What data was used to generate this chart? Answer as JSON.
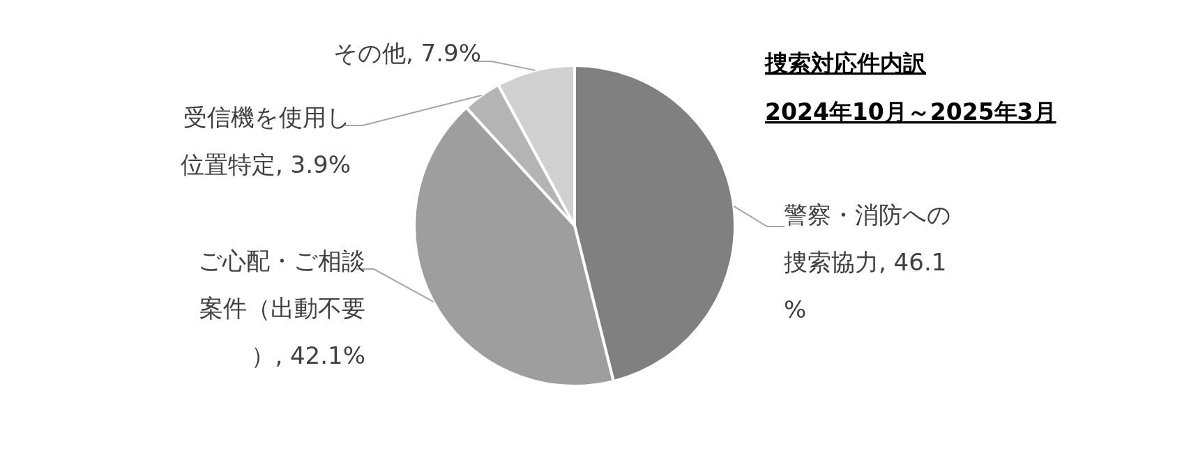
{
  "chart_data": {
    "type": "pie",
    "title": "捜索対応件内訳",
    "subtitle": "2024年10月～2025年3月",
    "categories": [
      "警察・消防への捜索協力",
      "ご心配・ご相談案件（出動不要）",
      "受信機を使用し位置特定",
      "その他"
    ],
    "values": [
      46.1,
      42.1,
      3.9,
      7.9
    ],
    "value_labels": [
      "46.1%",
      "42.1%",
      "3.9%",
      "7.9%"
    ],
    "colors": [
      "#808080",
      "#9e9e9e",
      "#b4b4b4",
      "#d0d0d0"
    ],
    "legend": false
  }
}
